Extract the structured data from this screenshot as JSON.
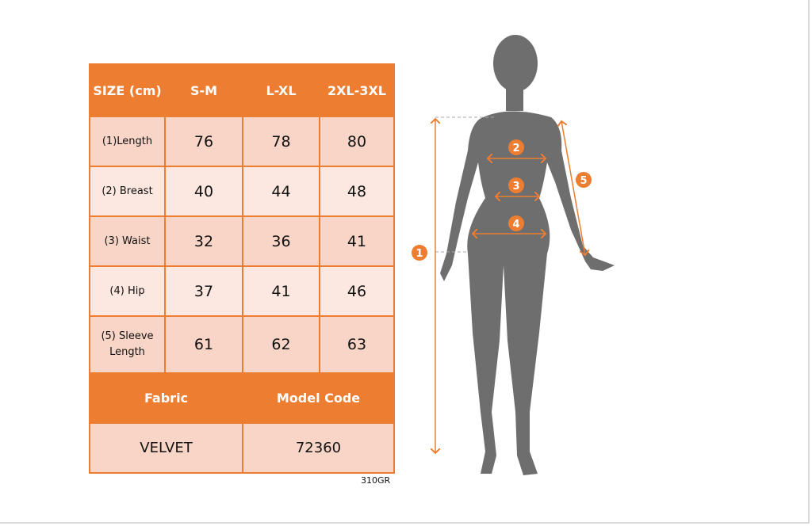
{
  "table": {
    "header": [
      "SIZE (cm)",
      "S-M",
      "L-XL",
      "2XL-3XL"
    ],
    "rows": [
      {
        "label": "(1)Length",
        "values": [
          "76",
          "78",
          "80"
        ]
      },
      {
        "label": "(2) Breast",
        "values": [
          "40",
          "44",
          "48"
        ]
      },
      {
        "label": "(3) Waist",
        "values": [
          "32",
          "36",
          "41"
        ]
      },
      {
        "label": "(4) Hip",
        "values": [
          "37",
          "41",
          "46"
        ]
      },
      {
        "label": "(5) Sleeve Length",
        "values": [
          "61",
          "62",
          "63"
        ]
      }
    ],
    "footer_header": [
      "Fabric",
      "Model Code"
    ],
    "footer_values": [
      "VELVET",
      "72360"
    ]
  },
  "product_code": "310GR",
  "figure": {
    "markers": [
      "1",
      "2",
      "3",
      "4",
      "5"
    ],
    "accent_color": "#ED7D31",
    "silhouette_color": "#6E6E6E"
  }
}
